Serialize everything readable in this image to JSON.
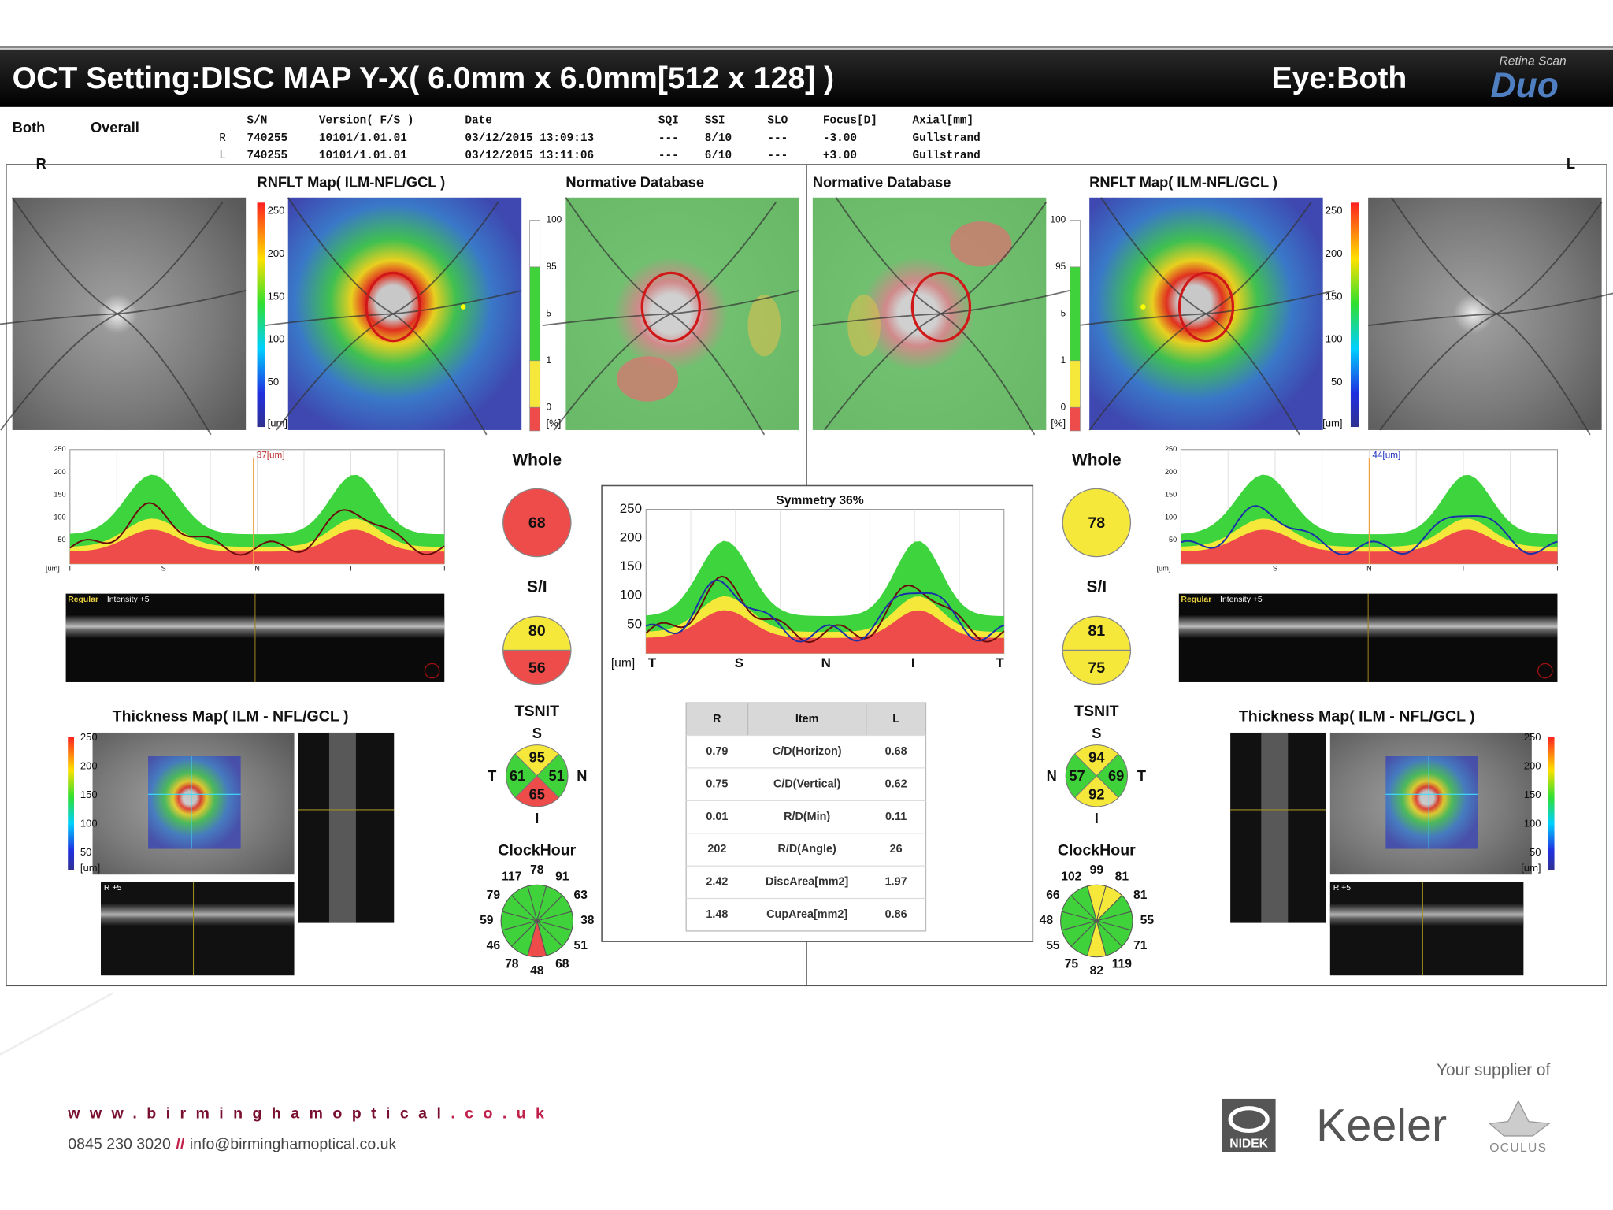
{
  "header": {
    "title": "OCT Setting:DISC MAP Y-X( 6.0mm x 6.0mm[512 x 128] )",
    "eye": "Eye:Both",
    "brand_script": "Retina Scan",
    "brand": "Duo"
  },
  "info": {
    "mode": "Both",
    "view": "Overall",
    "columns": [
      "S/N",
      "Version( F/S )",
      "Date",
      "SQI",
      "SSI",
      "SLO",
      "Focus[D]",
      "Axial[mm]"
    ],
    "rows": [
      {
        "eye": "R",
        "cells": [
          "740255",
          "10101/1.01.01",
          "03/12/2015 13:09:13",
          "---",
          "8/10",
          "---",
          "-3.00",
          "Gullstrand"
        ]
      },
      {
        "eye": "L",
        "cells": [
          "740255",
          "10101/1.01.01",
          "03/12/2015 13:11:06",
          "---",
          "6/10",
          "---",
          "+3.00",
          "Gullstrand"
        ]
      }
    ]
  },
  "eyes": [
    {
      "side": "R",
      "rnflt_title": "RNFLT Map( ILM-NFL/GCL )",
      "norm_title": "Normative Database",
      "rnflt_scale": [
        250,
        200,
        150,
        100,
        50
      ],
      "rnflt_unit": "[um]",
      "norm_scale": [
        100,
        95,
        5,
        1,
        0
      ],
      "norm_unit": "[%]",
      "profile": {
        "yticks": [
          250,
          200,
          150,
          100,
          50
        ],
        "unit": "[um]",
        "xlabels": [
          "T",
          "S",
          "N",
          "I",
          "T"
        ],
        "marker": "37[um]"
      },
      "bscan": {
        "mode": "Regular",
        "intensity": "Intensity +5"
      },
      "whole": {
        "label": "Whole",
        "value": 68,
        "color": "#ee4b4b"
      },
      "si": {
        "label": "S/I",
        "superior": 80,
        "inferior": 56,
        "superior_color": "#f5e83a",
        "inferior_color": "#ee4b4b"
      },
      "tsnit": {
        "label": "TSNIT",
        "letters": {
          "top": "S",
          "right": "N",
          "bottom": "I",
          "left": "T"
        },
        "values": {
          "top": 95,
          "right": 51,
          "bottom": 65,
          "left": 61
        },
        "colors": {
          "top": "#f5e83a",
          "right": "#3fd23a",
          "bottom": "#ee4b4b",
          "left": "#3fd23a"
        }
      },
      "clock": {
        "label": "ClockHour",
        "values": [
          78,
          91,
          63,
          38,
          51,
          68,
          48,
          78,
          46,
          59,
          79,
          117
        ],
        "colors": [
          "#3fd23a",
          "#3fd23a",
          "#3fd23a",
          "#3fd23a",
          "#3fd23a",
          "#3fd23a",
          "#ee4b4b",
          "#3fd23a",
          "#3fd23a",
          "#3fd23a",
          "#3fd23a",
          "#3fd23a"
        ]
      },
      "thickness": {
        "title": "Thickness Map( ILM - NFL/GCL )",
        "scale": [
          250,
          200,
          150,
          100,
          50
        ],
        "unit": "[um]",
        "scan_label": "R +5"
      }
    },
    {
      "side": "L",
      "rnflt_title": "RNFLT Map( ILM-NFL/GCL )",
      "norm_title": "Normative Database",
      "rnflt_scale": [
        250,
        200,
        150,
        100,
        50
      ],
      "rnflt_unit": "[um]",
      "norm_scale": [
        100,
        95,
        5,
        1,
        0
      ],
      "norm_unit": "[%]",
      "profile": {
        "yticks": [
          250,
          200,
          150,
          100,
          50
        ],
        "unit": "[um]",
        "xlabels": [
          "T",
          "S",
          "N",
          "I",
          "T"
        ],
        "marker": "44[um]"
      },
      "bscan": {
        "mode": "Regular",
        "intensity": "Intensity +5"
      },
      "whole": {
        "label": "Whole",
        "value": 78,
        "color": "#f5e83a"
      },
      "si": {
        "label": "S/I",
        "superior": 81,
        "inferior": 75,
        "superior_color": "#f5e83a",
        "inferior_color": "#f5e83a"
      },
      "tsnit": {
        "label": "TSNIT",
        "letters": {
          "top": "S",
          "right": "T",
          "bottom": "I",
          "left": "N"
        },
        "values": {
          "top": 94,
          "right": 69,
          "bottom": 92,
          "left": 57
        },
        "colors": {
          "top": "#f5e83a",
          "right": "#3fd23a",
          "bottom": "#f5e83a",
          "left": "#3fd23a"
        }
      },
      "clock": {
        "label": "ClockHour",
        "values": [
          99,
          81,
          81,
          55,
          71,
          119,
          82,
          75,
          55,
          48,
          66,
          102
        ],
        "colors": [
          "#f5e83a",
          "#f5e83a",
          "#3fd23a",
          "#3fd23a",
          "#3fd23a",
          "#3fd23a",
          "#f5e83a",
          "#3fd23a",
          "#3fd23a",
          "#3fd23a",
          "#3fd23a",
          "#3fd23a"
        ]
      },
      "thickness": {
        "title": "Thickness Map( ILM - NFL/GCL )",
        "scale": [
          250,
          200,
          150,
          100,
          50
        ],
        "unit": "[um]",
        "scan_label": "R +5"
      }
    }
  ],
  "symmetry": {
    "title": "Symmetry 36%",
    "yticks": [
      250,
      200,
      150,
      100,
      50
    ],
    "unit": "[um]",
    "xlabels": [
      "T",
      "S",
      "N",
      "I",
      "T"
    ],
    "table": {
      "header": [
        "R",
        "Item",
        "L"
      ],
      "rows": [
        [
          "0.79",
          "C/D(Horizon)",
          "0.68"
        ],
        [
          "0.75",
          "C/D(Vertical)",
          "0.62"
        ],
        [
          "0.01",
          "R/D(Min)",
          "0.11"
        ],
        [
          "202",
          "R/D(Angle)",
          "26"
        ],
        [
          "2.42",
          "DiscArea[mm2]",
          "1.97"
        ],
        [
          "1.48",
          "CupArea[mm2]",
          "0.86"
        ]
      ]
    }
  },
  "footer": {
    "url_main": "www.birminghamoptical",
    "url_tld": ".co.uk",
    "phone": "0845 230 3020",
    "separator": "//",
    "email": "info@birminghamoptical.co.uk",
    "supplier": "Your supplier of",
    "brands": [
      "NIDEK",
      "Keeler",
      "OCULUS"
    ]
  }
}
